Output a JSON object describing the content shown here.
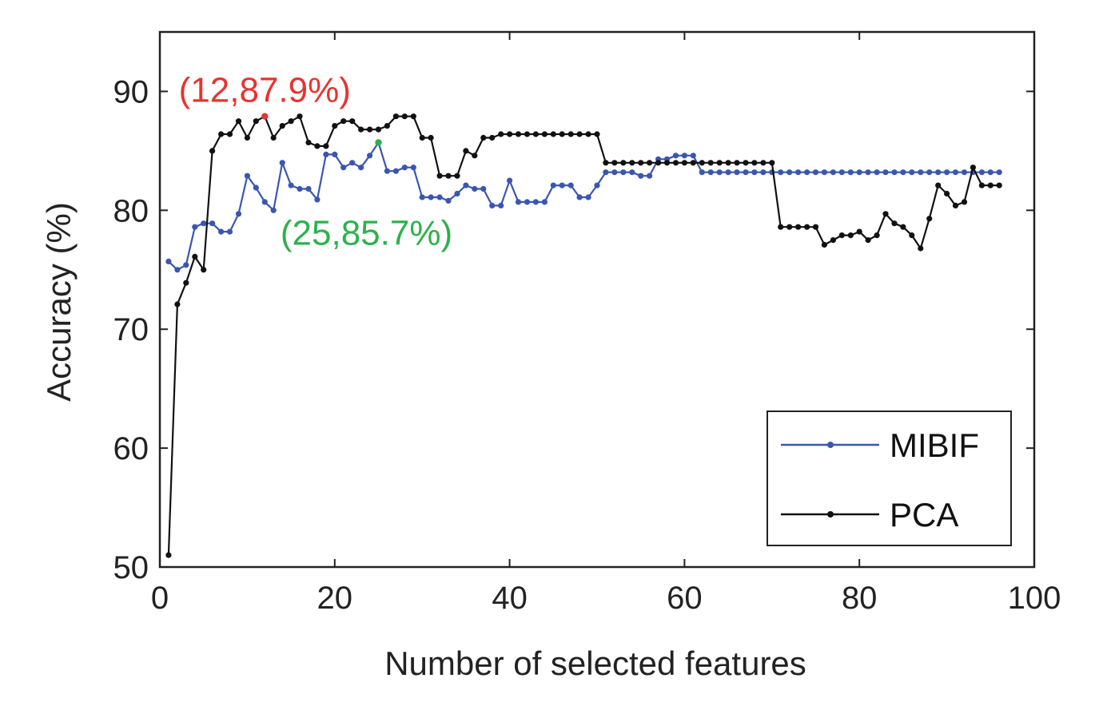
{
  "chart_data": {
    "type": "line",
    "xlabel": "Number of selected features",
    "ylabel": "Accuracy (%)",
    "xlim": [
      0,
      100
    ],
    "ylim": [
      50,
      95
    ],
    "xticks": [
      0,
      20,
      40,
      60,
      80,
      100
    ],
    "yticks": [
      50,
      60,
      70,
      80,
      90
    ],
    "xtick_labels": [
      "0",
      "20",
      "40",
      "60",
      "80",
      "100"
    ],
    "ytick_labels": [
      "50",
      "60",
      "70",
      "80",
      "90"
    ],
    "grid": false,
    "legend_position": "bottom-right",
    "series": [
      {
        "name": "MIBIF",
        "color": "#3a56b0",
        "x": [
          1,
          2,
          3,
          4,
          5,
          6,
          7,
          8,
          9,
          10,
          11,
          12,
          13,
          14,
          15,
          16,
          17,
          18,
          19,
          20,
          21,
          22,
          23,
          24,
          25,
          26,
          27,
          28,
          29,
          30,
          31,
          32,
          33,
          34,
          35,
          36,
          37,
          38,
          39,
          40,
          41,
          42,
          43,
          44,
          45,
          46,
          47,
          48,
          49,
          50,
          51,
          52,
          53,
          54,
          55,
          56,
          57,
          58,
          59,
          60,
          61,
          62,
          63,
          64,
          65,
          66,
          67,
          68,
          69,
          70,
          71,
          72,
          73,
          74,
          75,
          76,
          77,
          78,
          79,
          80,
          81,
          82,
          83,
          84,
          85,
          86,
          87,
          88,
          89,
          90,
          91,
          92,
          93,
          94,
          95,
          96
        ],
        "y": [
          75.7,
          75.0,
          75.4,
          78.6,
          78.9,
          78.9,
          78.2,
          78.2,
          79.7,
          82.9,
          81.9,
          80.7,
          80.0,
          84.0,
          82.1,
          81.8,
          81.8,
          80.9,
          84.7,
          84.7,
          83.6,
          84.0,
          83.6,
          84.6,
          85.7,
          83.3,
          83.3,
          83.6,
          83.6,
          81.1,
          81.1,
          81.1,
          80.8,
          81.4,
          82.1,
          81.8,
          81.8,
          80.4,
          80.4,
          82.5,
          80.7,
          80.7,
          80.7,
          80.7,
          82.1,
          82.1,
          82.1,
          81.1,
          81.1,
          82.1,
          83.2,
          83.2,
          83.2,
          83.2,
          82.9,
          82.9,
          84.3,
          84.3,
          84.6,
          84.6,
          84.6,
          83.2,
          83.2,
          83.2,
          83.2,
          83.2,
          83.2,
          83.2,
          83.2,
          83.2,
          83.2,
          83.2,
          83.2,
          83.2,
          83.2,
          83.2,
          83.2,
          83.2,
          83.2,
          83.2,
          83.2,
          83.2,
          83.2,
          83.2,
          83.2,
          83.2,
          83.2,
          83.2,
          83.2,
          83.2,
          83.2,
          83.2,
          83.2,
          83.2,
          83.2,
          83.2
        ]
      },
      {
        "name": "PCA",
        "color": "#111111",
        "x": [
          1,
          2,
          3,
          4,
          5,
          6,
          7,
          8,
          9,
          10,
          11,
          12,
          13,
          14,
          15,
          16,
          17,
          18,
          19,
          20,
          21,
          22,
          23,
          24,
          25,
          26,
          27,
          28,
          29,
          30,
          31,
          32,
          33,
          34,
          35,
          36,
          37,
          38,
          39,
          40,
          41,
          42,
          43,
          44,
          45,
          46,
          47,
          48,
          49,
          50,
          51,
          52,
          53,
          54,
          55,
          56,
          57,
          58,
          59,
          60,
          61,
          62,
          63,
          64,
          65,
          66,
          67,
          68,
          69,
          70,
          71,
          72,
          73,
          74,
          75,
          76,
          77,
          78,
          79,
          80,
          81,
          82,
          83,
          84,
          85,
          86,
          87,
          88,
          89,
          90,
          91,
          92,
          93,
          94,
          95,
          96
        ],
        "y": [
          51.0,
          72.1,
          73.9,
          76.1,
          75.0,
          85.0,
          86.4,
          86.4,
          87.5,
          86.1,
          87.5,
          87.9,
          86.1,
          87.1,
          87.5,
          87.9,
          85.7,
          85.4,
          85.4,
          87.1,
          87.5,
          87.5,
          86.8,
          86.8,
          86.8,
          87.1,
          87.9,
          87.9,
          87.9,
          86.1,
          86.1,
          82.9,
          82.9,
          82.9,
          85.0,
          84.6,
          86.1,
          86.1,
          86.4,
          86.4,
          86.4,
          86.4,
          86.4,
          86.4,
          86.4,
          86.4,
          86.4,
          86.4,
          86.4,
          86.4,
          84.0,
          84.0,
          84.0,
          84.0,
          84.0,
          84.0,
          84.0,
          84.0,
          84.0,
          84.0,
          84.0,
          84.0,
          84.0,
          84.0,
          84.0,
          84.0,
          84.0,
          84.0,
          84.0,
          84.0,
          78.6,
          78.6,
          78.6,
          78.6,
          78.6,
          77.1,
          77.5,
          77.9,
          77.9,
          78.2,
          77.5,
          77.9,
          79.7,
          78.9,
          78.6,
          77.9,
          76.8,
          79.3,
          82.1,
          81.4,
          80.4,
          80.7,
          83.6,
          82.1,
          82.1,
          82.1
        ]
      }
    ],
    "annotations": [
      {
        "text": "(12,87.9%)",
        "x": 12,
        "y": 87.9,
        "color": "#e8332f"
      },
      {
        "text": "(25,85.7%)",
        "x": 25,
        "y": 85.7,
        "color": "#2db14c"
      }
    ]
  }
}
